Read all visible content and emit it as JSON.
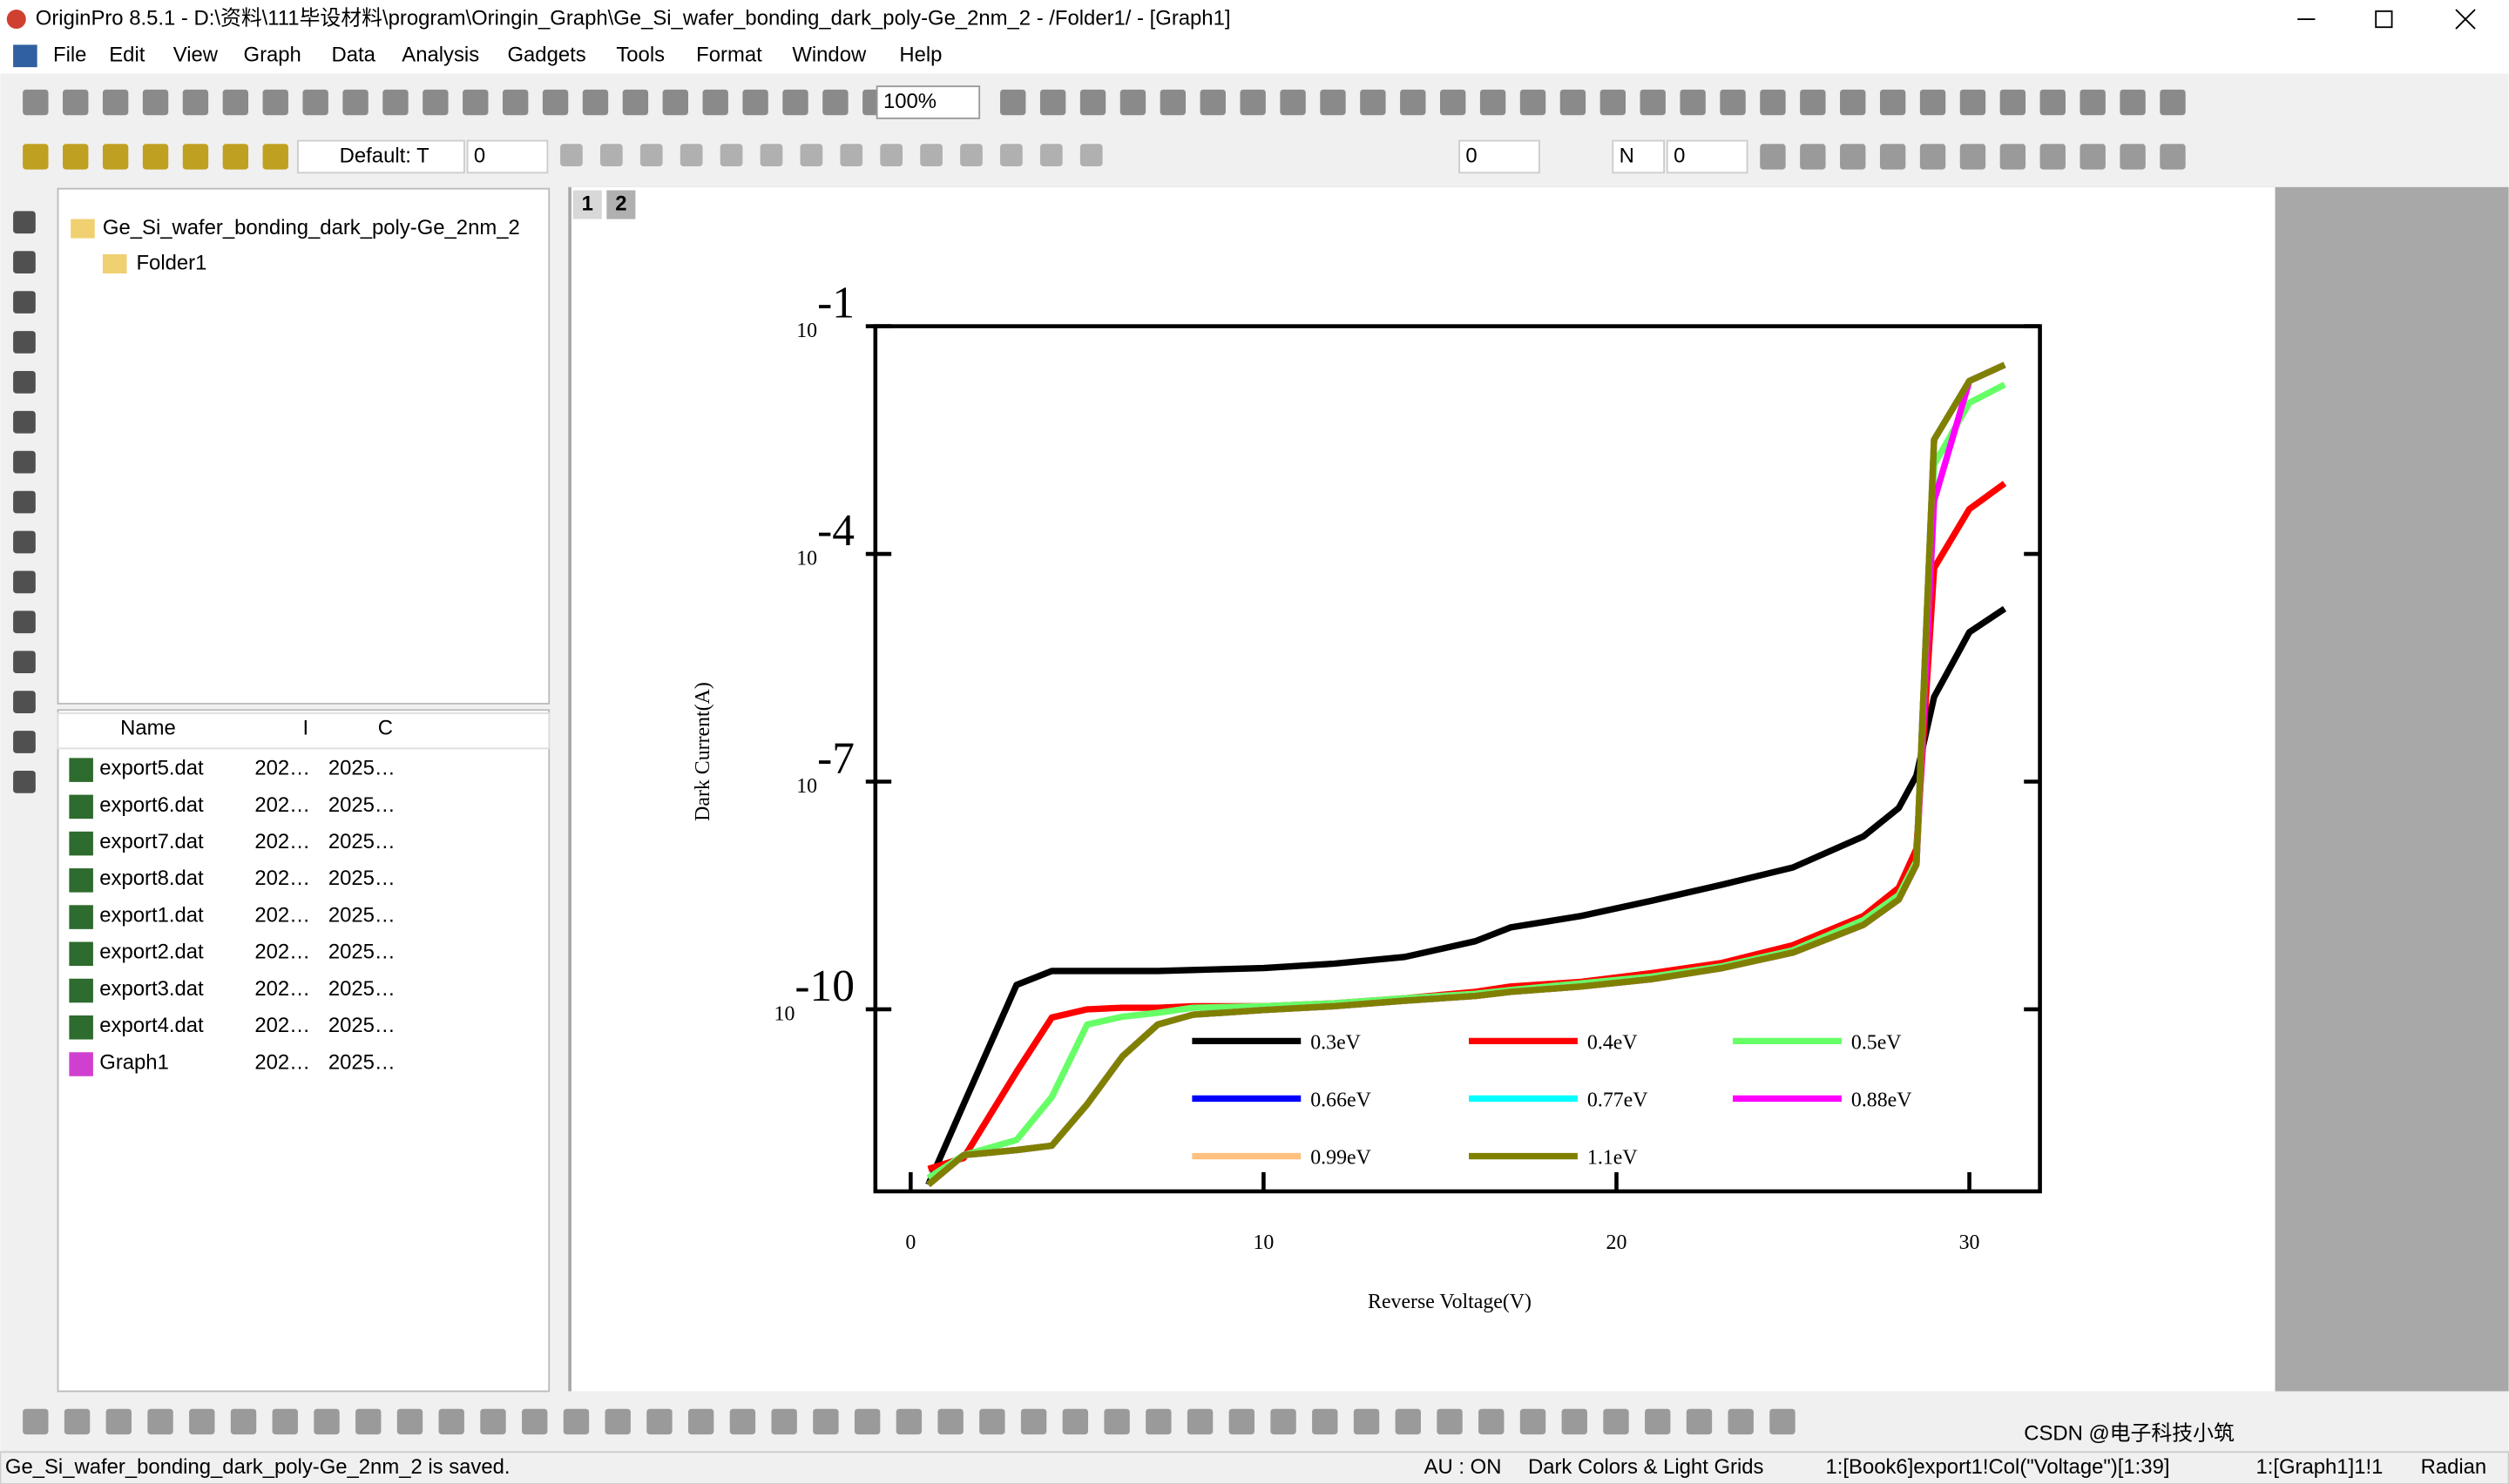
{
  "window": {
    "title": "OriginPro 8.5.1 - D:\\资料\\111毕设材料\\program\\Oringin_Graph\\Ge_Si_wafer_bonding_dark_poly-Ge_2nm_2 - /Folder1/ - [Graph1]"
  },
  "menu": [
    "File",
    "Edit",
    "View",
    "Graph",
    "Data",
    "Analysis",
    "Gadgets",
    "Tools",
    "Format",
    "Window",
    "Help"
  ],
  "toolbar": {
    "zoom": "100%",
    "font": "Default: T",
    "fields": [
      "0",
      "0",
      "N",
      "0"
    ]
  },
  "project_explorer": {
    "root": "Ge_Si_wafer_bonding_dark_poly-Ge_2nm_2",
    "folder": "Folder1",
    "columns": [
      "Name",
      "I",
      "C"
    ],
    "items": [
      [
        "export5.dat",
        "202…",
        "2025…"
      ],
      [
        "export6.dat",
        "202…",
        "2025…"
      ],
      [
        "export7.dat",
        "202…",
        "2025…"
      ],
      [
        "export8.dat",
        "202…",
        "2025…"
      ],
      [
        "export1.dat",
        "202…",
        "2025…"
      ],
      [
        "export2.dat",
        "202…",
        "2025…"
      ],
      [
        "export3.dat",
        "202…",
        "2025…"
      ],
      [
        "export4.dat",
        "202…",
        "2025…"
      ],
      [
        "Graph1",
        "202…",
        "2025…"
      ]
    ]
  },
  "page_tabs": [
    "1",
    "2"
  ],
  "chart_data": {
    "type": "line",
    "x_label": "Reverse Voltage(V)",
    "y_label": "Dark Current(A)",
    "log_y": true,
    "legend": "lower right",
    "xlim": [
      -1,
      32
    ],
    "xticks": [
      0,
      10,
      20,
      30
    ],
    "ylim": [
      4e-13,
      0.1
    ],
    "yticks": [
      {
        "value": 0.1,
        "label": "10-1"
      },
      {
        "value": 0.0001,
        "label": "10-4"
      },
      {
        "value": 1e-07,
        "label": "10-7"
      },
      {
        "value": 1e-10,
        "label": "10-10"
      }
    ],
    "x": [
      0.5,
      1.5,
      3,
      4,
      5,
      6,
      7,
      8,
      10,
      12,
      14,
      16,
      17,
      19,
      21,
      23,
      25,
      27,
      28,
      28.5,
      29,
      30,
      31
    ],
    "series": [
      {
        "name": "0.3eV",
        "color": "#000000",
        "values": [
          4.9e-13,
          5.6e-12,
          2.1e-10,
          3.2e-10,
          3.2e-10,
          3.2e-10,
          3.2e-10,
          3.3e-10,
          3.5e-10,
          4e-10,
          4.9e-10,
          7.9e-10,
          1.2e-09,
          1.7e-09,
          2.7e-09,
          4.4e-09,
          7.4e-09,
          1.9e-08,
          4.5e-08,
          1.2e-07,
          1.3e-06,
          9.3e-06,
          1.9e-05
        ]
      },
      {
        "name": "0.4eV",
        "color": "#ff0000",
        "values": [
          7.9e-13,
          1.1e-12,
          1.5e-11,
          7.8e-11,
          1e-10,
          1.05e-10,
          1.05e-10,
          1.1e-10,
          1.1e-10,
          1.2e-10,
          1.4e-10,
          1.7e-10,
          2e-10,
          2.3e-10,
          3e-10,
          4.1e-10,
          7e-10,
          1.7e-09,
          4e-09,
          1.3e-08,
          6.5e-05,
          0.00039,
          0.00085
        ]
      },
      {
        "name": "0.5eV",
        "color": "#66ff66",
        "values": [
          6e-13,
          1.2e-12,
          1.9e-12,
          7e-12,
          6.3e-11,
          8e-11,
          9e-11,
          1.05e-10,
          1.1e-10,
          1.2e-10,
          1.4e-10,
          1.6e-10,
          1.8e-10,
          2.2e-10,
          2.7e-10,
          3.7e-10,
          6e-10,
          1.5e-09,
          3.2e-09,
          9e-09,
          0.0015,
          0.0098,
          0.017
        ]
      },
      {
        "name": "0.66eV",
        "color": "#0000ff",
        "values": [
          4.9e-13,
          1.2e-12,
          1.4e-12,
          1.6e-12,
          5.6e-12,
          2.4e-11,
          6.3e-11,
          8.5e-11,
          9.8e-11,
          1.1e-10,
          1.3e-10,
          1.5e-10,
          1.7e-10,
          2e-10,
          2.5e-10,
          3.5e-10,
          5.6e-10,
          1.3e-09,
          2.8e-09,
          8.1e-09,
          0.0032,
          0.019,
          0.031
        ]
      },
      {
        "name": "0.77eV",
        "color": "#00ffff",
        "values": [
          4.9e-13,
          1.2e-12,
          1.4e-12,
          1.6e-12,
          5.6e-12,
          2.4e-11,
          6.3e-11,
          8.5e-11,
          9.8e-11,
          1.1e-10,
          1.3e-10,
          1.5e-10,
          1.7e-10,
          2e-10,
          2.5e-10,
          3.5e-10,
          5.6e-10,
          1.3e-09,
          2.8e-09,
          8.1e-09,
          0.0032,
          0.019,
          0.031
        ]
      },
      {
        "name": "0.88eV",
        "color": "#ff00ff",
        "values": [
          4.9e-13,
          1.2e-12,
          1.4e-12,
          1.6e-12,
          5.6e-12,
          2.4e-11,
          6.3e-11,
          8.5e-11,
          9.8e-11,
          1.1e-10,
          1.3e-10,
          1.5e-10,
          1.7e-10,
          2e-10,
          2.5e-10,
          3.5e-10,
          5.6e-10,
          1.3e-09,
          2.8e-09,
          8.1e-09,
          0.0005,
          0.019,
          0.031
        ]
      },
      {
        "name": "0.99eV",
        "color": "#ffc080",
        "values": [
          4.9e-13,
          1.2e-12,
          1.4e-12,
          1.6e-12,
          5.6e-12,
          2.4e-11,
          6.3e-11,
          8.5e-11,
          9.8e-11,
          1.1e-10,
          1.3e-10,
          1.5e-10,
          1.7e-10,
          2e-10,
          2.5e-10,
          3.5e-10,
          5.6e-10,
          1.3e-09,
          2.8e-09,
          8.1e-09,
          0.0032,
          0.019,
          0.031
        ]
      },
      {
        "name": "1.1eV",
        "color": "#808000",
        "values": [
          4.9e-13,
          1.2e-12,
          1.4e-12,
          1.6e-12,
          5.6e-12,
          2.4e-11,
          6.3e-11,
          8.5e-11,
          9.8e-11,
          1.1e-10,
          1.3e-10,
          1.5e-10,
          1.7e-10,
          2e-10,
          2.5e-10,
          3.5e-10,
          5.6e-10,
          1.3e-09,
          2.8e-09,
          8.1e-09,
          0.0032,
          0.019,
          0.031
        ]
      }
    ]
  },
  "status_bar": [
    "Ge_Si_wafer_bonding_dark_poly-Ge_2nm_2 is saved.",
    "AU : ON",
    "Dark Colors & Light Grids",
    "1:[Book6]export1!Col(\"Voltage\")[1:39]",
    "1:[Graph1]1!1",
    "Radian"
  ],
  "watermark": "CSDN @电子科技小筑"
}
